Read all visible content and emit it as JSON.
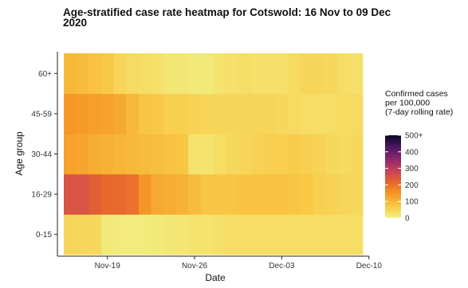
{
  "chart_data": {
    "type": "heatmap",
    "title": "Age-stratified case rate heatmap for Cotswold: 16 Nov to 09 Dec 2020",
    "xlabel": "Date",
    "ylabel": "Age group",
    "x": [
      "2020-11-16",
      "2020-11-17",
      "2020-11-18",
      "2020-11-19",
      "2020-11-20",
      "2020-11-21",
      "2020-11-22",
      "2020-11-23",
      "2020-11-24",
      "2020-11-25",
      "2020-11-26",
      "2020-11-27",
      "2020-11-28",
      "2020-11-29",
      "2020-11-30",
      "2020-12-01",
      "2020-12-02",
      "2020-12-03",
      "2020-12-04",
      "2020-12-05",
      "2020-12-06",
      "2020-12-07",
      "2020-12-08",
      "2020-12-09"
    ],
    "x_ticks": [
      "Nov-19",
      "Nov-26",
      "Dec-03",
      "Dec-10"
    ],
    "x_tick_dates": [
      "2020-11-19",
      "2020-11-26",
      "2020-12-03",
      "2020-12-10"
    ],
    "y": [
      "0-15",
      "16-29",
      "30-44",
      "45-59",
      "60+"
    ],
    "values": [
      [
        50,
        48,
        45,
        15,
        12,
        10,
        10,
        15,
        20,
        20,
        25,
        25,
        30,
        35,
        35,
        35,
        35,
        35,
        35,
        35,
        35,
        35,
        35,
        35
      ],
      [
        250,
        250,
        230,
        215,
        210,
        200,
        150,
        120,
        115,
        105,
        90,
        75,
        75,
        75,
        80,
        80,
        80,
        80,
        75,
        70,
        60,
        55,
        50,
        45
      ],
      [
        130,
        125,
        115,
        105,
        100,
        95,
        90,
        85,
        80,
        75,
        25,
        25,
        35,
        45,
        50,
        55,
        60,
        60,
        65,
        60,
        55,
        45,
        40,
        45
      ],
      [
        145,
        140,
        135,
        130,
        120,
        95,
        75,
        70,
        60,
        60,
        55,
        50,
        50,
        50,
        50,
        50,
        50,
        45,
        40,
        35,
        35,
        35,
        40,
        40
      ],
      [
        95,
        90,
        80,
        70,
        50,
        40,
        35,
        30,
        20,
        20,
        15,
        15,
        25,
        30,
        35,
        30,
        30,
        30,
        40,
        50,
        50,
        45,
        35,
        30
      ]
    ],
    "legend": {
      "title": [
        "Confirmed cases",
        "per 100,000",
        "(7-day rolling rate)"
      ],
      "labels": [
        "500+",
        "400",
        "300",
        "200",
        "100",
        "0"
      ],
      "label_values": [
        500,
        400,
        300,
        200,
        100,
        0
      ],
      "range": [
        0,
        500
      ]
    },
    "colormap": [
      "#f2f286",
      "#f9c845",
      "#f59a26",
      "#e8672d",
      "#c7405b",
      "#8d266f",
      "#4c1663",
      "#0b0924"
    ]
  }
}
